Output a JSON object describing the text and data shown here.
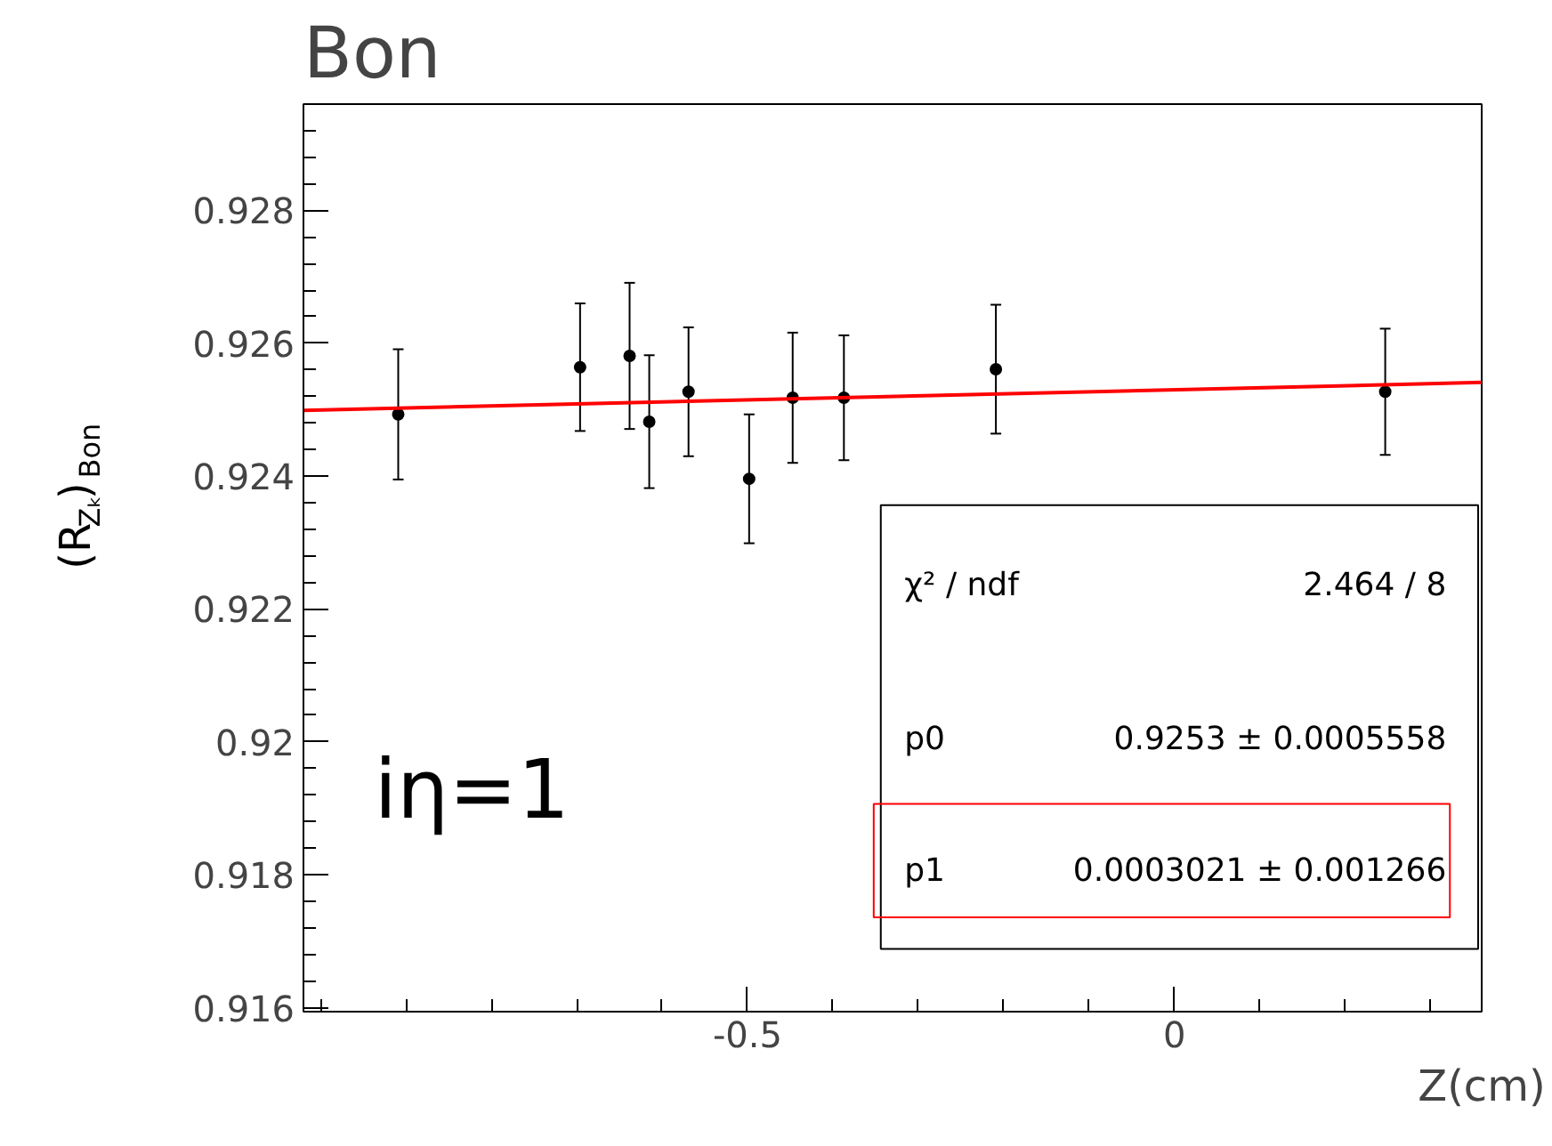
{
  "chart_data": {
    "type": "scatter",
    "title": "Bon",
    "xlabel": "Z(cm)",
    "ylabel": "(R$_{Zₖ}$)$_{Bon}$",
    "xlim": [
      -1.02,
      0.36
    ],
    "ylim": [
      0.91594,
      0.9296
    ],
    "xticks": [
      -0.5,
      0
    ],
    "yticks": [
      0.916,
      0.918,
      0.92,
      0.922,
      0.924,
      0.926,
      0.928
    ],
    "grid": false,
    "marker": "circle",
    "series": [
      {
        "type": "scatter",
        "color": "#000000",
        "x": [
          -0.909,
          -0.696,
          -0.638,
          -0.615,
          -0.569,
          -0.498,
          -0.447,
          -0.387,
          -0.209,
          0.247
        ],
        "values": [
          0.92493,
          0.92564,
          0.92581,
          0.92482,
          0.92527,
          0.92396,
          0.92518,
          0.92518,
          0.92561,
          0.92527
        ],
        "errors": [
          0.00098,
          0.00096,
          0.0011,
          0.001,
          0.00097,
          0.00097,
          0.00098,
          0.00094,
          0.00097,
          0.00095
        ]
      },
      {
        "type": "line",
        "marker": "none",
        "color": "#ff0000",
        "x": [
          -1.02,
          0.36
        ],
        "values": [
          0.92499,
          0.92541
        ]
      }
    ],
    "annotations": [
      "χ² / ndf",
      "2.464 / 8",
      "p0",
      "0.9253 ± 0.0005558",
      "p1",
      "0.0003021 ± 0.001266",
      "iη=1"
    ]
  }
}
